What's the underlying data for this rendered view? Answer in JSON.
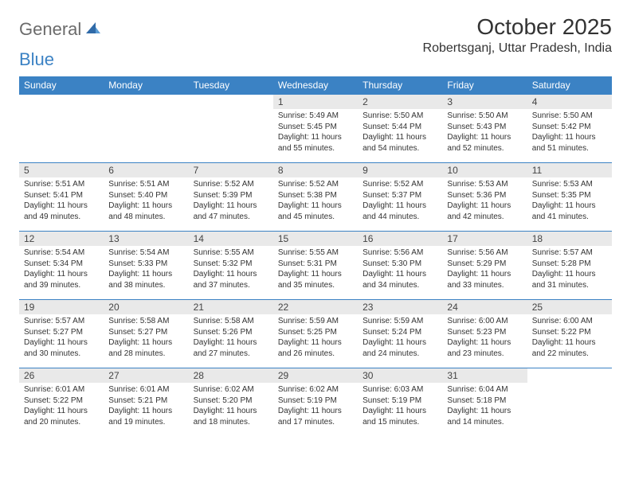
{
  "logo": {
    "word1": "General",
    "word2": "Blue"
  },
  "title": "October 2025",
  "location": "Robertsganj, Uttar Pradesh, India",
  "colors": {
    "header_bg": "#3b82c4",
    "header_text": "#ffffff",
    "daynum_bg": "#e9e9e9",
    "border": "#3b82c4",
    "logo_gray": "#6b6b6b",
    "logo_blue": "#3b82c4"
  },
  "dayHeaders": [
    "Sunday",
    "Monday",
    "Tuesday",
    "Wednesday",
    "Thursday",
    "Friday",
    "Saturday"
  ],
  "weeks": [
    [
      {
        "day": "",
        "sunrise": "",
        "sunset": "",
        "daylight": ""
      },
      {
        "day": "",
        "sunrise": "",
        "sunset": "",
        "daylight": ""
      },
      {
        "day": "",
        "sunrise": "",
        "sunset": "",
        "daylight": ""
      },
      {
        "day": "1",
        "sunrise": "Sunrise: 5:49 AM",
        "sunset": "Sunset: 5:45 PM",
        "daylight": "Daylight: 11 hours and 55 minutes."
      },
      {
        "day": "2",
        "sunrise": "Sunrise: 5:50 AM",
        "sunset": "Sunset: 5:44 PM",
        "daylight": "Daylight: 11 hours and 54 minutes."
      },
      {
        "day": "3",
        "sunrise": "Sunrise: 5:50 AM",
        "sunset": "Sunset: 5:43 PM",
        "daylight": "Daylight: 11 hours and 52 minutes."
      },
      {
        "day": "4",
        "sunrise": "Sunrise: 5:50 AM",
        "sunset": "Sunset: 5:42 PM",
        "daylight": "Daylight: 11 hours and 51 minutes."
      }
    ],
    [
      {
        "day": "5",
        "sunrise": "Sunrise: 5:51 AM",
        "sunset": "Sunset: 5:41 PM",
        "daylight": "Daylight: 11 hours and 49 minutes."
      },
      {
        "day": "6",
        "sunrise": "Sunrise: 5:51 AM",
        "sunset": "Sunset: 5:40 PM",
        "daylight": "Daylight: 11 hours and 48 minutes."
      },
      {
        "day": "7",
        "sunrise": "Sunrise: 5:52 AM",
        "sunset": "Sunset: 5:39 PM",
        "daylight": "Daylight: 11 hours and 47 minutes."
      },
      {
        "day": "8",
        "sunrise": "Sunrise: 5:52 AM",
        "sunset": "Sunset: 5:38 PM",
        "daylight": "Daylight: 11 hours and 45 minutes."
      },
      {
        "day": "9",
        "sunrise": "Sunrise: 5:52 AM",
        "sunset": "Sunset: 5:37 PM",
        "daylight": "Daylight: 11 hours and 44 minutes."
      },
      {
        "day": "10",
        "sunrise": "Sunrise: 5:53 AM",
        "sunset": "Sunset: 5:36 PM",
        "daylight": "Daylight: 11 hours and 42 minutes."
      },
      {
        "day": "11",
        "sunrise": "Sunrise: 5:53 AM",
        "sunset": "Sunset: 5:35 PM",
        "daylight": "Daylight: 11 hours and 41 minutes."
      }
    ],
    [
      {
        "day": "12",
        "sunrise": "Sunrise: 5:54 AM",
        "sunset": "Sunset: 5:34 PM",
        "daylight": "Daylight: 11 hours and 39 minutes."
      },
      {
        "day": "13",
        "sunrise": "Sunrise: 5:54 AM",
        "sunset": "Sunset: 5:33 PM",
        "daylight": "Daylight: 11 hours and 38 minutes."
      },
      {
        "day": "14",
        "sunrise": "Sunrise: 5:55 AM",
        "sunset": "Sunset: 5:32 PM",
        "daylight": "Daylight: 11 hours and 37 minutes."
      },
      {
        "day": "15",
        "sunrise": "Sunrise: 5:55 AM",
        "sunset": "Sunset: 5:31 PM",
        "daylight": "Daylight: 11 hours and 35 minutes."
      },
      {
        "day": "16",
        "sunrise": "Sunrise: 5:56 AM",
        "sunset": "Sunset: 5:30 PM",
        "daylight": "Daylight: 11 hours and 34 minutes."
      },
      {
        "day": "17",
        "sunrise": "Sunrise: 5:56 AM",
        "sunset": "Sunset: 5:29 PM",
        "daylight": "Daylight: 11 hours and 33 minutes."
      },
      {
        "day": "18",
        "sunrise": "Sunrise: 5:57 AM",
        "sunset": "Sunset: 5:28 PM",
        "daylight": "Daylight: 11 hours and 31 minutes."
      }
    ],
    [
      {
        "day": "19",
        "sunrise": "Sunrise: 5:57 AM",
        "sunset": "Sunset: 5:27 PM",
        "daylight": "Daylight: 11 hours and 30 minutes."
      },
      {
        "day": "20",
        "sunrise": "Sunrise: 5:58 AM",
        "sunset": "Sunset: 5:27 PM",
        "daylight": "Daylight: 11 hours and 28 minutes."
      },
      {
        "day": "21",
        "sunrise": "Sunrise: 5:58 AM",
        "sunset": "Sunset: 5:26 PM",
        "daylight": "Daylight: 11 hours and 27 minutes."
      },
      {
        "day": "22",
        "sunrise": "Sunrise: 5:59 AM",
        "sunset": "Sunset: 5:25 PM",
        "daylight": "Daylight: 11 hours and 26 minutes."
      },
      {
        "day": "23",
        "sunrise": "Sunrise: 5:59 AM",
        "sunset": "Sunset: 5:24 PM",
        "daylight": "Daylight: 11 hours and 24 minutes."
      },
      {
        "day": "24",
        "sunrise": "Sunrise: 6:00 AM",
        "sunset": "Sunset: 5:23 PM",
        "daylight": "Daylight: 11 hours and 23 minutes."
      },
      {
        "day": "25",
        "sunrise": "Sunrise: 6:00 AM",
        "sunset": "Sunset: 5:22 PM",
        "daylight": "Daylight: 11 hours and 22 minutes."
      }
    ],
    [
      {
        "day": "26",
        "sunrise": "Sunrise: 6:01 AM",
        "sunset": "Sunset: 5:22 PM",
        "daylight": "Daylight: 11 hours and 20 minutes."
      },
      {
        "day": "27",
        "sunrise": "Sunrise: 6:01 AM",
        "sunset": "Sunset: 5:21 PM",
        "daylight": "Daylight: 11 hours and 19 minutes."
      },
      {
        "day": "28",
        "sunrise": "Sunrise: 6:02 AM",
        "sunset": "Sunset: 5:20 PM",
        "daylight": "Daylight: 11 hours and 18 minutes."
      },
      {
        "day": "29",
        "sunrise": "Sunrise: 6:02 AM",
        "sunset": "Sunset: 5:19 PM",
        "daylight": "Daylight: 11 hours and 17 minutes."
      },
      {
        "day": "30",
        "sunrise": "Sunrise: 6:03 AM",
        "sunset": "Sunset: 5:19 PM",
        "daylight": "Daylight: 11 hours and 15 minutes."
      },
      {
        "day": "31",
        "sunrise": "Sunrise: 6:04 AM",
        "sunset": "Sunset: 5:18 PM",
        "daylight": "Daylight: 11 hours and 14 minutes."
      },
      {
        "day": "",
        "sunrise": "",
        "sunset": "",
        "daylight": ""
      }
    ]
  ]
}
